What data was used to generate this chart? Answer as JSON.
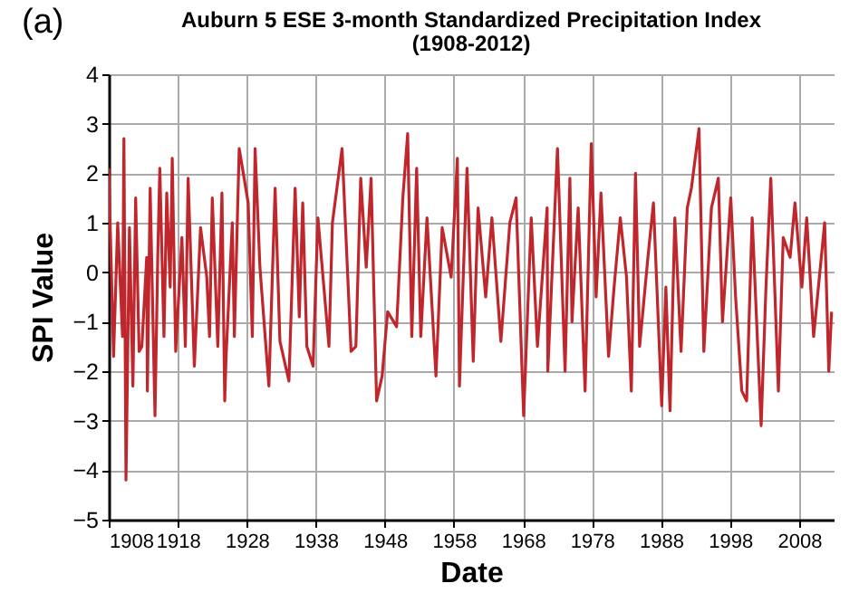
{
  "chart_data": {
    "type": "line",
    "title": "Auburn 5 ESE 3-month Standardized Precipitation Index",
    "subtitle": "(1908-2012)",
    "xlabel": "Date",
    "ylabel": "SPI Value",
    "annotations": [
      "(a)"
    ],
    "x": [
      1908,
      1908.7,
      1909.3,
      1910,
      1910.2,
      1910.5,
      1911,
      1911.5,
      1911.9,
      1912.4,
      1912.8,
      1913.5,
      1913.6,
      1914,
      1914.7,
      1915.1,
      1915.4,
      1916,
      1916.4,
      1916.9,
      1917.2,
      1917.7,
      1918.6,
      1919.1,
      1919.5,
      1920.4,
      1921.3,
      1922.2,
      1922.6,
      1923,
      1923.8,
      1924.4,
      1924.8,
      1925,
      1925.9,
      1926.2,
      1926.6,
      1926.9,
      1928.2,
      1928.8,
      1929.2,
      1929.9,
      1931.2,
      1932.1,
      1932.8,
      1934.1,
      1935,
      1935.6,
      1936.1,
      1936.7,
      1937.6,
      1938.3,
      1939.9,
      1940.4,
      1941.8,
      1943.1,
      1943.8,
      1944.5,
      1945.3,
      1946,
      1946.8,
      1947.6,
      1948.4,
      1949.7,
      1950.6,
      1951.3,
      1951.9,
      1952.6,
      1953.2,
      1954.1,
      1955.4,
      1956.3,
      1957.6,
      1958.5,
      1958.8,
      1959.9,
      1960.8,
      1961.5,
      1962.6,
      1963.5,
      1964.8,
      1966.1,
      1967,
      1968.1,
      1969.2,
      1970.1,
      1971.5,
      1971.6,
      1973,
      1974.1,
      1974.8,
      1975.1,
      1976,
      1977,
      1977.9,
      1978.6,
      1979.3,
      1980.4,
      1981.2,
      1982.1,
      1983,
      1983.7,
      1984.3,
      1984.9,
      1986.1,
      1986.9,
      1988.1,
      1988.7,
      1989.3,
      1990,
      1990.9,
      1991.8,
      1992.4,
      1993.5,
      1994.2,
      1995.3,
      1996.3,
      1996.9,
      1998.1,
      1998.8,
      1999.7,
      2000.4,
      2001.2,
      2002.5,
      2003.2,
      2003.9,
      2005,
      2005.7,
      2006.7,
      2007.4,
      2008.4,
      2009.1,
      2010.1,
      2011.7,
      2012.3,
      2012.7
    ],
    "series": [
      {
        "color": "#c0272d",
        "values": [
          2.1,
          -1.7,
          1.0,
          -1.3,
          2.7,
          -4.2,
          0.9,
          -2.3,
          1.5,
          -1.6,
          -1.5,
          0.3,
          -2.4,
          1.7,
          -2.9,
          0.3,
          2.1,
          -1.3,
          1.6,
          -0.3,
          2.3,
          -1.6,
          0.7,
          -1.5,
          1.9,
          -1.9,
          0.9,
          -0.1,
          -1.3,
          1.5,
          -1.5,
          1.6,
          -2.6,
          -1.7,
          1.0,
          -1.3,
          0.9,
          2.5,
          1.4,
          -1.3,
          2.5,
          0.1,
          -2.3,
          1.7,
          -1.4,
          -2.2,
          1.7,
          -0.9,
          1.4,
          -1.5,
          -1.9,
          1.1,
          -1.5,
          1.0,
          2.5,
          -1.6,
          -1.5,
          1.9,
          0.1,
          1.9,
          -2.6,
          -2.1,
          -0.8,
          -1.1,
          1.5,
          2.8,
          -1.3,
          2.1,
          -1.3,
          1.1,
          -2.1,
          0.9,
          -0.1,
          2.3,
          -2.3,
          2.1,
          -1.8,
          1.3,
          -0.5,
          1.1,
          -1.4,
          1.0,
          1.5,
          -2.9,
          1.1,
          -1.5,
          1.3,
          -2.0,
          2.5,
          -2.0,
          1.9,
          -1.0,
          1.3,
          -2.4,
          2.6,
          -0.5,
          1.6,
          -1.7,
          -0.3,
          1.1,
          -0.1,
          -2.4,
          2.0,
          -1.5,
          0.3,
          1.4,
          -2.7,
          -0.3,
          -2.8,
          1.1,
          -1.6,
          1.3,
          1.7,
          2.9,
          -1.6,
          1.3,
          1.9,
          -1.0,
          1.5,
          -0.5,
          -2.4,
          -2.6,
          1.1,
          -3.1,
          -0.3,
          1.9,
          -2.4,
          0.7,
          0.3,
          1.4,
          -0.3,
          1.1,
          -1.3,
          1.0,
          -2.0,
          -0.8
        ]
      }
    ],
    "xlim": [
      1908,
      2013
    ],
    "xticks": [
      1908,
      1918,
      1928,
      1938,
      1948,
      1958,
      1968,
      1978,
      1988,
      1998,
      2008
    ],
    "ylim": [
      -5,
      4
    ],
    "yticks": [
      -5,
      -4,
      -3,
      -2,
      -1,
      0,
      1,
      2,
      3,
      4
    ],
    "grid": true,
    "line_style": "solid",
    "marker": "none"
  }
}
